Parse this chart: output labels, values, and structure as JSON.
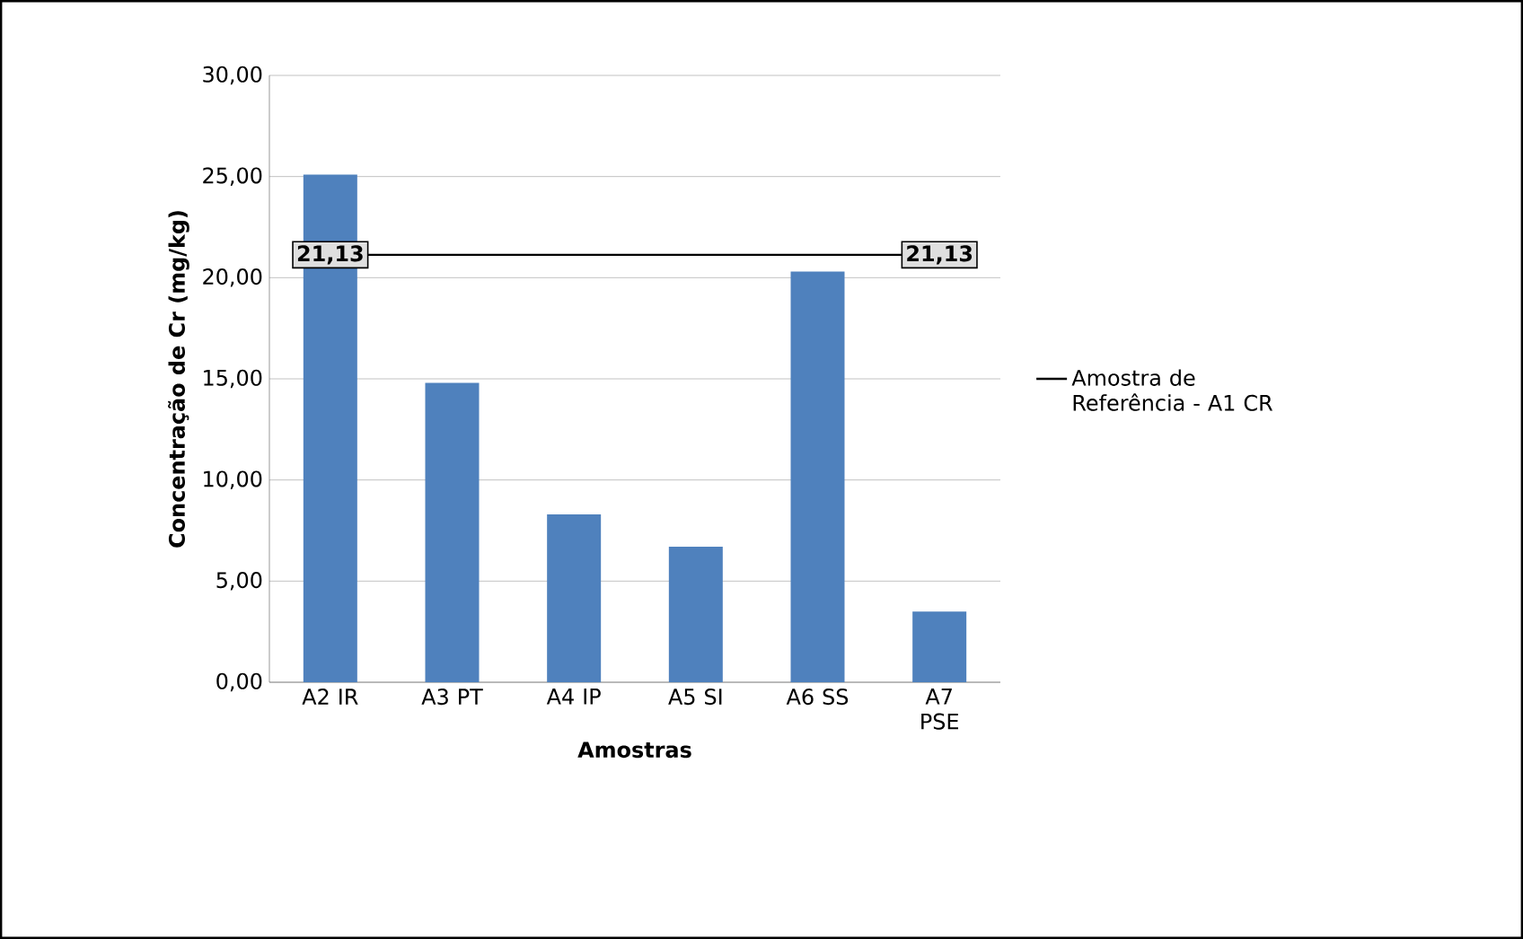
{
  "chart_data": {
    "type": "bar",
    "xlabel": "Amostras",
    "ylabel": "Concentração de Cr (mg/kg)",
    "categories": [
      "A2 IR",
      "A3 PT",
      "A4 IP",
      "A5 SI",
      "A6 SS",
      "A7 PSE"
    ],
    "series": [
      {
        "color": "#4f81bd",
        "values": [
          25.1,
          14.8,
          8.3,
          6.7,
          20.3,
          3.5
        ]
      },
      {
        "type": "line",
        "name": "Amostra de Referência - A1 CR",
        "color": "#000000",
        "values": [
          21.13,
          21.13,
          21.13,
          21.13,
          21.13,
          21.13
        ],
        "value_labels": [
          "21,13",
          null,
          null,
          null,
          null,
          "21,13"
        ]
      }
    ],
    "ylim": [
      0,
      30
    ],
    "yticks": [
      {
        "value": 0,
        "label": "0,00"
      },
      {
        "value": 5,
        "label": "5,00"
      },
      {
        "value": 10,
        "label": "10,00"
      },
      {
        "value": 15,
        "label": "15,00"
      },
      {
        "value": 20,
        "label": "20,00"
      },
      {
        "value": 25,
        "label": "25,00"
      },
      {
        "value": 30,
        "label": "30,00"
      }
    ],
    "grid": "y",
    "legend": "right"
  }
}
